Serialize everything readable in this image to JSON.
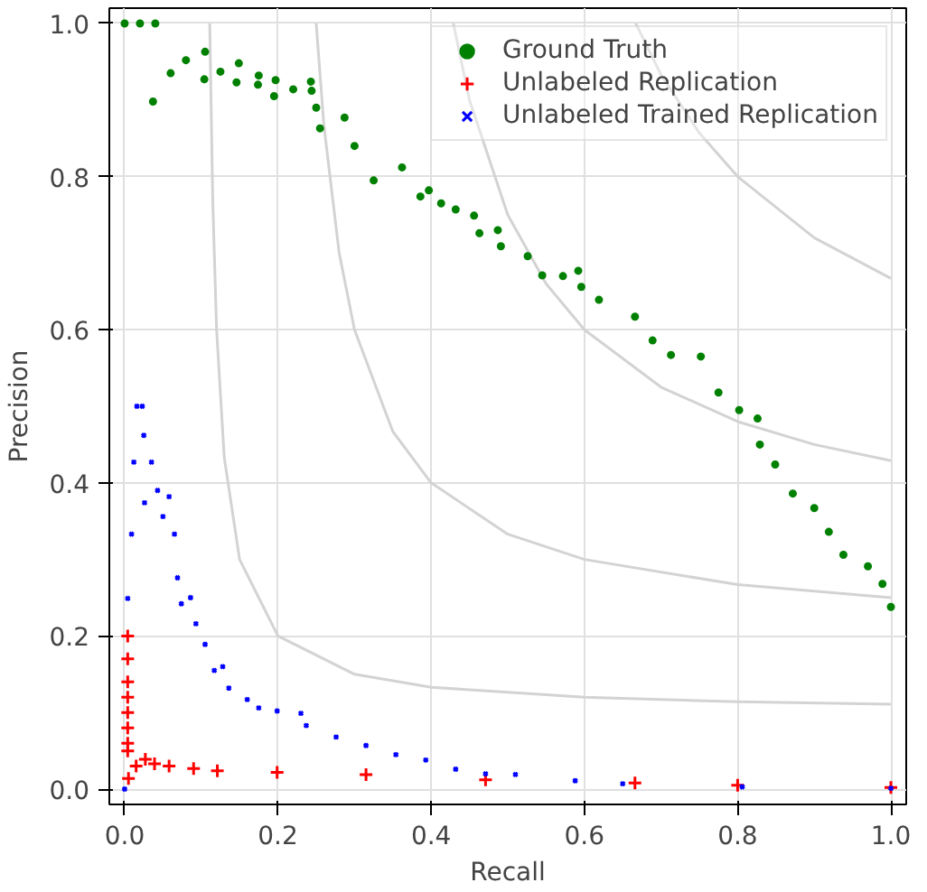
{
  "chart_data": {
    "type": "scatter",
    "xlabel": "Recall",
    "ylabel": "Precision",
    "xlim": [
      -0.02,
      1.02
    ],
    "ylim": [
      -0.02,
      1.02
    ],
    "xticks": [
      {
        "value": 0,
        "label": "0.0"
      },
      {
        "value": 0.2,
        "label": "0.2"
      },
      {
        "value": 0.4,
        "label": "0.4"
      },
      {
        "value": 0.6,
        "label": "0.6"
      },
      {
        "value": 0.8,
        "label": "0.8"
      },
      {
        "value": 1,
        "label": "1.0"
      }
    ],
    "yticks": [
      {
        "value": 0,
        "label": "0.0"
      },
      {
        "value": 0.2,
        "label": "0.2"
      },
      {
        "value": 0.4,
        "label": "0.4"
      },
      {
        "value": 0.6,
        "label": "0.6"
      },
      {
        "value": 0.8,
        "label": "0.8"
      },
      {
        "value": 1,
        "label": "1.0"
      }
    ],
    "grid": true,
    "legend": "top right",
    "series": [
      {
        "type": "line",
        "color": "#d3d3d3",
        "x": [
          0.111,
          0.115,
          0.12,
          0.13,
          0.15,
          0.2,
          0.3,
          0.4,
          0.6,
          0.8,
          1.0
        ],
        "values": [
          1.0,
          0.767,
          0.6,
          0.433,
          0.3,
          0.2,
          0.15,
          0.133,
          0.12,
          0.114,
          0.111
        ]
      },
      {
        "type": "line",
        "color": "#d3d3d3",
        "x": [
          0.25,
          0.26,
          0.28,
          0.3,
          0.35,
          0.4,
          0.5,
          0.6,
          0.8,
          1.0
        ],
        "values": [
          1.0,
          0.867,
          0.7,
          0.6,
          0.467,
          0.4,
          0.333,
          0.3,
          0.267,
          0.25
        ]
      },
      {
        "type": "line",
        "color": "#d3d3d3",
        "x": [
          0.429,
          0.45,
          0.5,
          0.55,
          0.6,
          0.7,
          0.8,
          0.9,
          1.0
        ],
        "values": [
          1.0,
          0.9,
          0.75,
          0.66,
          0.6,
          0.525,
          0.48,
          0.45,
          0.429
        ]
      },
      {
        "type": "line",
        "color": "#d3d3d3",
        "x": [
          0.667,
          0.7,
          0.75,
          0.8,
          0.9,
          1.0
        ],
        "values": [
          1.0,
          0.933,
          0.857,
          0.8,
          0.72,
          0.667
        ]
      },
      {
        "name": "Ground Truth",
        "color": "#008000",
        "marker": "circle",
        "x": [
          0.0,
          0.02,
          0.04,
          0.037,
          0.06,
          0.08,
          0.105,
          0.104,
          0.125,
          0.149,
          0.146,
          0.175,
          0.174,
          0.197,
          0.195,
          0.22,
          0.243,
          0.244,
          0.25,
          0.255,
          0.287,
          0.3,
          0.325,
          0.362,
          0.386,
          0.397,
          0.413,
          0.432,
          0.456,
          0.463,
          0.487,
          0.491,
          0.526,
          0.545,
          0.572,
          0.592,
          0.596,
          0.619,
          0.666,
          0.689,
          0.713,
          0.752,
          0.775,
          0.802,
          0.826,
          0.829,
          0.849,
          0.872,
          0.9,
          0.919,
          0.938,
          0.97,
          0.989,
          1.0
        ],
        "values": [
          1.0,
          1.0,
          1.0,
          0.898,
          0.935,
          0.952,
          0.963,
          0.927,
          0.937,
          0.948,
          0.923,
          0.932,
          0.92,
          0.926,
          0.905,
          0.914,
          0.924,
          0.912,
          0.89,
          0.863,
          0.877,
          0.84,
          0.795,
          0.812,
          0.774,
          0.782,
          0.765,
          0.757,
          0.749,
          0.726,
          0.73,
          0.709,
          0.696,
          0.671,
          0.67,
          0.677,
          0.656,
          0.639,
          0.617,
          0.586,
          0.567,
          0.565,
          0.518,
          0.495,
          0.484,
          0.45,
          0.424,
          0.386,
          0.367,
          0.336,
          0.306,
          0.291,
          0.268,
          0.238
        ]
      },
      {
        "name": "Unlabeled Replication",
        "color": "#ff0000",
        "marker": "cross",
        "x": [
          0.004,
          0.004,
          0.004,
          0.004,
          0.004,
          0.004,
          0.004,
          0.004,
          0.005,
          0.015,
          0.027,
          0.039,
          0.058,
          0.09,
          0.121,
          0.199,
          0.315,
          0.471,
          0.666,
          0.8,
          1.0
        ],
        "values": [
          0.2,
          0.17,
          0.14,
          0.12,
          0.1,
          0.08,
          0.06,
          0.05,
          0.014,
          0.03,
          0.039,
          0.033,
          0.03,
          0.027,
          0.024,
          0.022,
          0.019,
          0.012,
          0.008,
          0.005,
          0.002
        ]
      },
      {
        "name": "Unlabeled Trained Replication",
        "color": "#0000ff",
        "marker": "x",
        "x": [
          0.0,
          0.004,
          0.009,
          0.012,
          0.016,
          0.023,
          0.025,
          0.026,
          0.035,
          0.043,
          0.05,
          0.058,
          0.065,
          0.069,
          0.074,
          0.086,
          0.093,
          0.105,
          0.117,
          0.128,
          0.136,
          0.16,
          0.175,
          0.199,
          0.23,
          0.237,
          0.276,
          0.315,
          0.354,
          0.393,
          0.432,
          0.471,
          0.51,
          0.588,
          0.65,
          0.806,
          1.0
        ],
        "values": [
          0.0,
          0.249,
          0.333,
          0.427,
          0.5,
          0.5,
          0.462,
          0.374,
          0.427,
          0.39,
          0.356,
          0.382,
          0.333,
          0.276,
          0.242,
          0.25,
          0.216,
          0.189,
          0.155,
          0.16,
          0.132,
          0.117,
          0.106,
          0.102,
          0.099,
          0.083,
          0.068,
          0.057,
          0.045,
          0.038,
          0.026,
          0.02,
          0.019,
          0.011,
          0.007,
          0.003,
          0.001
        ]
      }
    ]
  }
}
